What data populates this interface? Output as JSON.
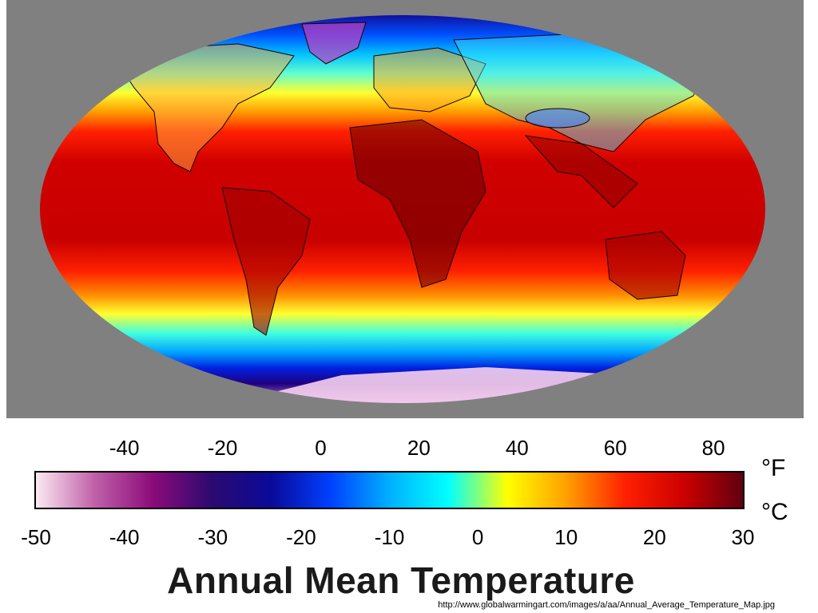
{
  "title": "Annual Mean Temperature",
  "source_url": "http://www.globalwarmingart.com/images/a/aa/Annual_Average_Temperature_Map.jpg",
  "units": {
    "fahrenheit": "°F",
    "celsius": "°C"
  },
  "fahrenheit_ticks": [
    "-40",
    "-20",
    "0",
    "20",
    "40",
    "60",
    "80"
  ],
  "fahrenheit_values": [
    -40,
    -20,
    0,
    20,
    40,
    60,
    80
  ],
  "celsius_ticks": [
    "-50",
    "-40",
    "-30",
    "-20",
    "-10",
    "0",
    "10",
    "20",
    "30"
  ],
  "celsius_values": [
    -50,
    -40,
    -30,
    -20,
    -10,
    0,
    10,
    20,
    30
  ],
  "colors": {
    "panel_bg": "#808080",
    "scale_stops": [
      "#fbe9f2",
      "#c060a8",
      "#8a0a7a",
      "#2a0a70",
      "#0a0a9a",
      "#0040ff",
      "#00b0ff",
      "#00ffff",
      "#ffff00",
      "#ffa000",
      "#ff2000",
      "#cc0000",
      "#600010"
    ]
  }
}
